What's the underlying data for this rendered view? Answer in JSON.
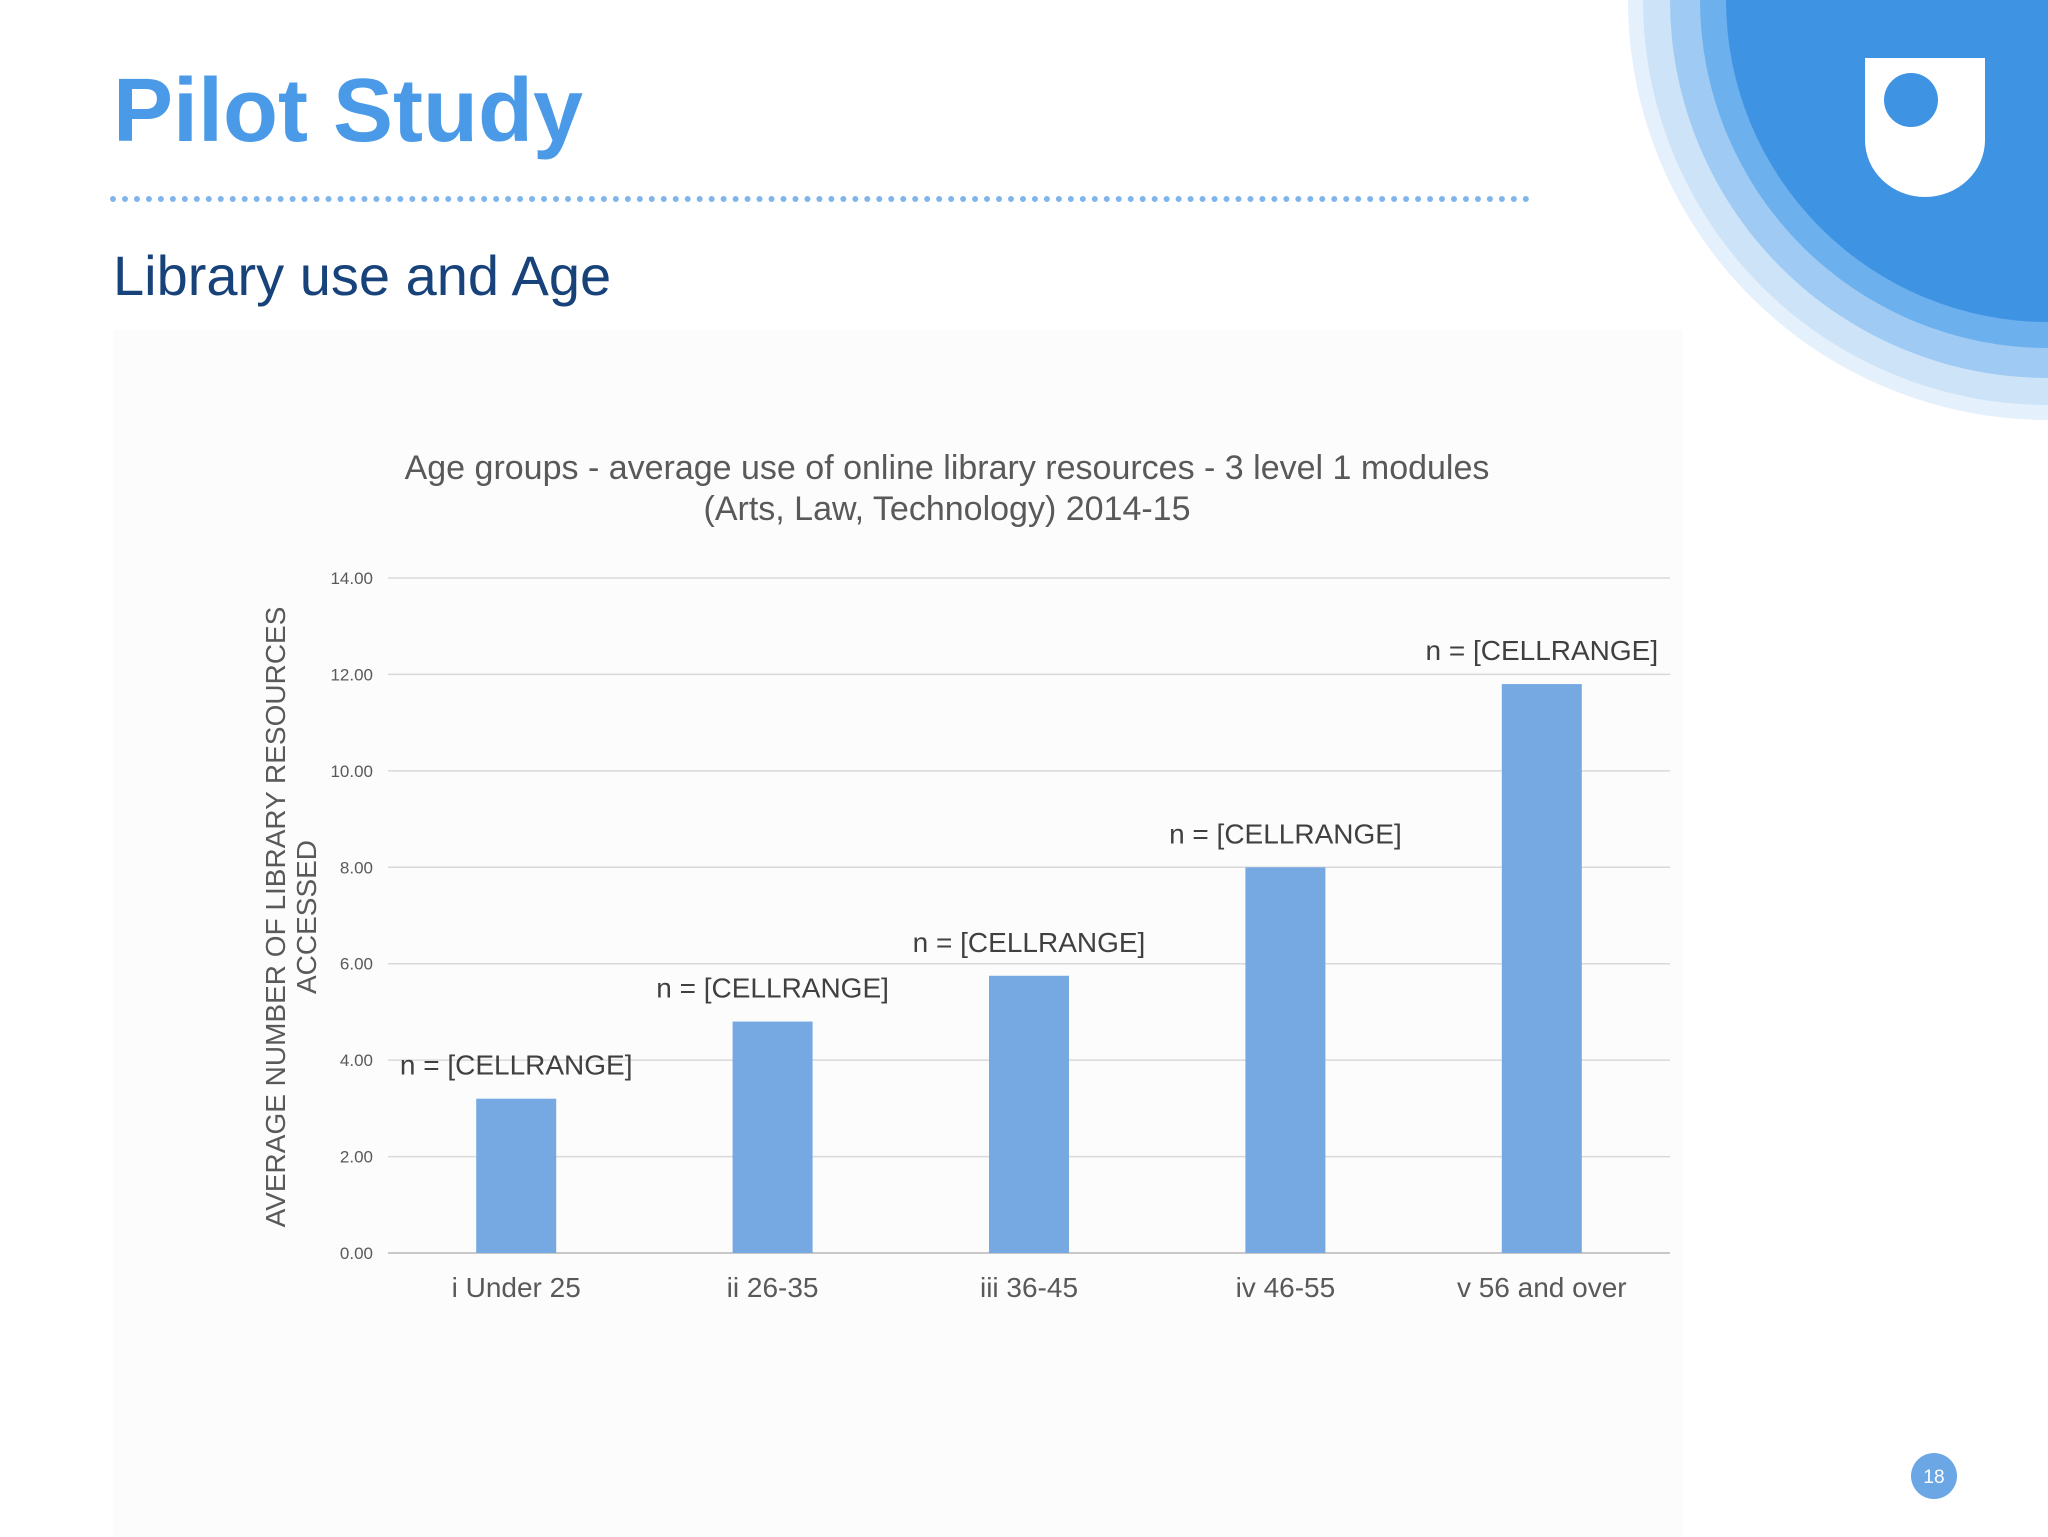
{
  "slide": {
    "title": "Pilot Study",
    "subtitle": "Library use and Age",
    "page_number": "18"
  },
  "colors": {
    "title": "#4a9ae8",
    "subtitle": "#17427a",
    "bar": "#76a9e2",
    "logo_inner": "#3f93e3",
    "page_badge": "#6aa7e4"
  },
  "icons": [
    "open-university-logo-icon"
  ],
  "chart_data": {
    "type": "bar",
    "title_lines": [
      "Age groups - average use of online library resources - 3 level 1 modules",
      "(Arts, Law, Technology)  2014-15"
    ],
    "ylabel_lines": [
      "AVERAGE NUMBER OF LIBRARY RESOURCES",
      "ACCESSED"
    ],
    "xlabel": "",
    "categories": [
      "i Under 25",
      "ii 26-35",
      "iii 36-45",
      "iv 46-55",
      "v 56 and over"
    ],
    "values": [
      3.2,
      4.8,
      5.75,
      8.0,
      11.8
    ],
    "data_labels": [
      "n = [CELLRANGE]",
      "n = [CELLRANGE]",
      "n = [CELLRANGE]",
      "n = [CELLRANGE]",
      "n = [CELLRANGE]"
    ],
    "ylim": [
      0,
      14
    ],
    "yticks": [
      "0.00",
      "2.00",
      "4.00",
      "6.00",
      "8.00",
      "10.00",
      "12.00",
      "14.00"
    ],
    "grid": true,
    "legend": "none"
  }
}
